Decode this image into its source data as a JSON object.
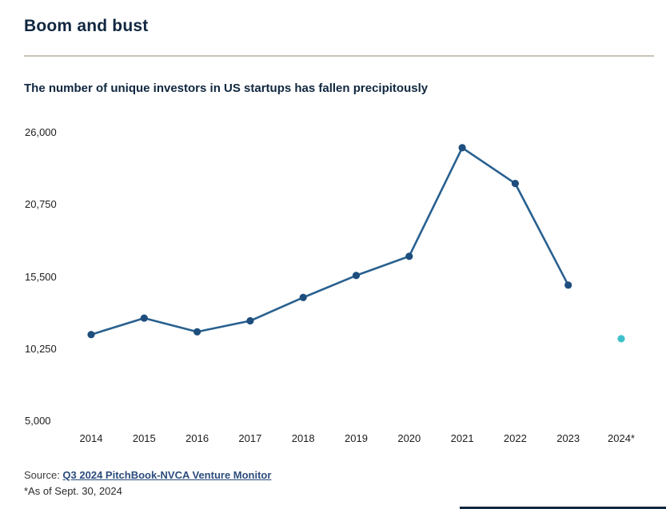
{
  "header": {
    "title": "Boom and bust",
    "subtitle": "The number of unique investors in US startups has fallen precipitously"
  },
  "footer": {
    "source_label": "Source: ",
    "source_link": "Q3 2024 PitchBook-NVCA Venture Monitor",
    "footnote": "*As of Sept. 30, 2024"
  },
  "colors": {
    "title_navy": "#102740",
    "line": "#28608f",
    "marker": "#1e4e7d",
    "provisional_marker": "#3fc1ca",
    "divider": "#c9c3b7"
  },
  "chart_data": {
    "type": "line",
    "title": "Boom and bust",
    "subtitle": "The number of unique investors in US startups has fallen precipitously",
    "x": [
      "2014",
      "2015",
      "2016",
      "2017",
      "2018",
      "2019",
      "2020",
      "2021",
      "2022",
      "2023",
      "2024*"
    ],
    "series": [
      {
        "name": "Unique investors in US startups",
        "values": [
          11300,
          12500,
          11500,
          12300,
          14000,
          15600,
          17000,
          24900,
          22300,
          14900,
          11000
        ]
      }
    ],
    "ylim": [
      5000,
      26000
    ],
    "ytick_values": [
      26000,
      20750,
      15500,
      10250,
      5000
    ],
    "ytick_labels": [
      "26,000",
      "20,750",
      "15,500",
      "10,250",
      "5,000"
    ],
    "grid": false,
    "legend": "none",
    "provisional_last_point": true
  }
}
